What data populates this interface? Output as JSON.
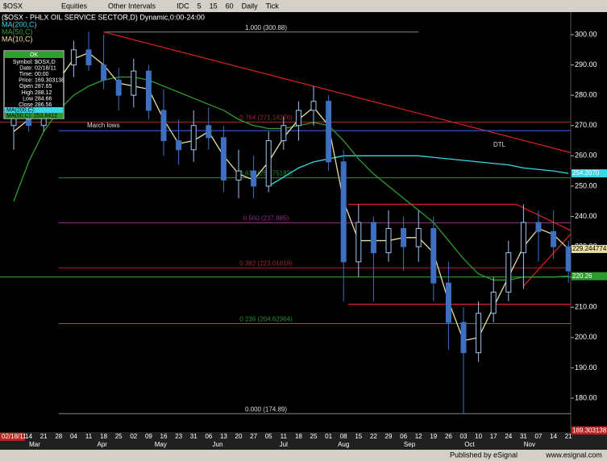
{
  "toolbar": {
    "symbol": "$OSX",
    "items": [
      "Equities",
      "Other Intervals",
      "IDC",
      "5",
      "15",
      "60",
      "Daily",
      "Tick"
    ]
  },
  "footer": {
    "published": "Published by eSignal",
    "site": "www.esignal.com"
  },
  "data_window": {
    "header": "OK",
    "rows": [
      [
        "Symbol:",
        "$OSX,D"
      ],
      [
        "Date:",
        "02/18/11"
      ],
      [
        "Time:",
        "00:00"
      ],
      [
        "Price:",
        "169.303138"
      ],
      [
        "Open",
        "287.65"
      ],
      [
        "High",
        "288.12"
      ],
      [
        "Low",
        "284.66"
      ],
      [
        "Close",
        "286.56"
      ]
    ],
    "ma_rows": [
      "MA(200,C):",
      "MA(50,C): 253.6412"
    ]
  },
  "chart_data": {
    "type": "candlestick",
    "title": "($OSX - PHLX OIL SERVICE SECTOR,D) Dynamic,0:00-24:00",
    "cursor_date": "02/18/11",
    "categories": [
      "07",
      "14",
      "21",
      "28",
      "04",
      "11",
      "18",
      "25",
      "02",
      "09",
      "16",
      "23",
      "31",
      "06",
      "13",
      "20",
      "27",
      "05",
      "11",
      "18",
      "25",
      "01",
      "08",
      "15",
      "22",
      "29",
      "06",
      "12",
      "19",
      "26",
      "03",
      "10",
      "17",
      "24",
      "31",
      "07",
      "14",
      "21"
    ],
    "months": [
      {
        "label": "Mar",
        "x": 1.4
      },
      {
        "label": "Apr",
        "x": 5.9
      },
      {
        "label": "May",
        "x": 9.8
      },
      {
        "label": "Jun",
        "x": 13.6
      },
      {
        "label": "Jul",
        "x": 18
      },
      {
        "label": "Aug",
        "x": 22
      },
      {
        "label": "Sep",
        "x": 26.4
      },
      {
        "label": "Oct",
        "x": 30.4
      },
      {
        "label": "Nov",
        "x": 34.4
      }
    ],
    "open": [
      270,
      275,
      270,
      283,
      290,
      295,
      290,
      285,
      280,
      288,
      275,
      265,
      262,
      270,
      266,
      252,
      255,
      250,
      265,
      270,
      275,
      278,
      258,
      225,
      238,
      228,
      236,
      230,
      236,
      218,
      205,
      195,
      208,
      215,
      228,
      238,
      235,
      230
    ],
    "high": [
      280,
      282,
      285,
      292,
      298,
      301,
      300,
      289,
      292,
      290,
      282,
      272,
      275,
      276,
      270,
      262,
      260,
      268,
      273,
      278,
      283,
      280,
      262,
      244,
      240,
      242,
      240,
      242,
      240,
      225,
      210,
      212,
      220,
      232,
      244,
      242,
      242,
      232
    ],
    "low": [
      262,
      268,
      268,
      280,
      286,
      288,
      282,
      275,
      276,
      272,
      260,
      257,
      258,
      262,
      248,
      246,
      246,
      248,
      262,
      265,
      270,
      255,
      212,
      220,
      212,
      225,
      222,
      225,
      212,
      196,
      175,
      192,
      205,
      212,
      216,
      225,
      226,
      218
    ],
    "close": [
      275,
      270,
      283,
      290,
      295,
      290,
      285,
      280,
      288,
      275,
      265,
      262,
      270,
      266,
      252,
      255,
      250,
      265,
      270,
      275,
      278,
      258,
      225,
      238,
      228,
      236,
      230,
      236,
      218,
      205,
      195,
      208,
      215,
      228,
      238,
      235,
      230,
      222
    ],
    "up_color": "#9fc4ee",
    "down_color": "#3f6fc0",
    "series": [
      {
        "name": "MA(200,C)",
        "color": "#38d8e8",
        "values": [
          null,
          null,
          null,
          null,
          null,
          null,
          null,
          null,
          null,
          null,
          null,
          null,
          null,
          null,
          null,
          null,
          null,
          250,
          253,
          256,
          258,
          259,
          260,
          260,
          260,
          260,
          260,
          260,
          259.5,
          259,
          258.5,
          258,
          257.5,
          257,
          256,
          255.5,
          255,
          254.207
        ],
        "value_label": "254.2070"
      },
      {
        "name": "MA(50,C)",
        "color": "#2e9a2e",
        "values": [
          245,
          258,
          268,
          275,
          280,
          283,
          285,
          286,
          286,
          285,
          283,
          281,
          279,
          277,
          275,
          272,
          270,
          269,
          269,
          270,
          271,
          270,
          265,
          259,
          254,
          250,
          246,
          242,
          238,
          232,
          226,
          221,
          219,
          219,
          220,
          220,
          220,
          220.26
        ],
        "value_label": "220.26"
      },
      {
        "name": "MA(10,C)",
        "color": "#e8e0a0",
        "values": [
          268,
          272,
          275,
          285,
          292,
          294,
          290,
          284,
          283,
          282,
          272,
          264,
          265,
          268,
          260,
          254,
          252,
          258,
          266,
          272,
          276,
          270,
          245,
          232,
          232,
          232,
          233,
          233,
          228,
          212,
          199,
          200,
          210,
          220,
          230,
          236,
          234,
          229.244774
        ],
        "value_label": "229.244774"
      }
    ],
    "cursor_price": 169.303138,
    "cursor_price_label": "169.303138",
    "ylim": [
      170,
      300
    ],
    "yticks": [
      {
        "value": 300,
        "label": "300.00"
      },
      {
        "value": 290,
        "label": "290.00"
      },
      {
        "value": 280,
        "label": "280.00"
      },
      {
        "value": 270,
        "label": "270.00"
      },
      {
        "value": 260,
        "label": "260.00"
      },
      {
        "value": 250,
        "label": "250.00"
      },
      {
        "value": 240,
        "label": "240.00"
      },
      {
        "value": 230,
        "label": "230.00"
      },
      {
        "value": 220,
        "label": "220.00"
      },
      {
        "value": 210,
        "label": "210.00"
      },
      {
        "value": 200,
        "label": "200.00"
      },
      {
        "value": 190,
        "label": "190.00"
      },
      {
        "value": 180,
        "label": "180.00"
      }
    ],
    "levels": [
      {
        "label": "1.000 (300.88)",
        "value": 300.88,
        "color": "#888888",
        "span": [
          6,
          27
        ]
      },
      {
        "label": "0.764 (271.14276)",
        "value": 271.14276,
        "color": "#a02828",
        "span": [
          -1,
          37.2
        ]
      },
      {
        "label": "0.618 (252.75182)",
        "value": 252.75182,
        "color": "#2e8a2e",
        "span": [
          3,
          37.2
        ]
      },
      {
        "label": "0.500 (237.885)",
        "value": 237.885,
        "color": "#8a2e8a",
        "span": [
          3,
          37.2
        ]
      },
      {
        "label": "0.382 (223.01818)",
        "value": 223.01818,
        "color": "#a02828",
        "span": [
          3,
          37.2
        ]
      },
      {
        "label": "0.236 (204.62364)",
        "value": 204.62364,
        "color": "#2e8a2e",
        "span": [
          3,
          37.2
        ]
      },
      {
        "label": "0.000 (174.89)",
        "value": 174.89,
        "color": "#888888",
        "span": [
          3,
          37.2
        ]
      }
    ],
    "trendlines": [
      {
        "label": "DTL",
        "color": "#e02020",
        "points": [
          [
            6,
            300.88
          ],
          [
            37.2,
            261
          ]
        ]
      },
      {
        "label": "March lows",
        "color": "#3050d0",
        "points": [
          [
            3,
            268.3
          ],
          [
            37.2,
            268.3
          ]
        ]
      },
      {
        "color": "#2e9a2e",
        "points": [
          [
            -1,
            220
          ],
          [
            37.2,
            220
          ]
        ]
      },
      {
        "color": "#e02020",
        "points": [
          [
            22.3,
            244
          ],
          [
            33.5,
            244
          ]
        ]
      },
      {
        "color": "#e02020",
        "points": [
          [
            22.3,
            211
          ],
          [
            37.2,
            211
          ]
        ]
      },
      {
        "color": "#e02020",
        "points": [
          [
            33.5,
            244
          ],
          [
            37.3,
            235
          ]
        ]
      },
      {
        "color": "#e02020",
        "points": [
          [
            34,
            217
          ],
          [
            37.3,
            235
          ]
        ]
      }
    ]
  }
}
